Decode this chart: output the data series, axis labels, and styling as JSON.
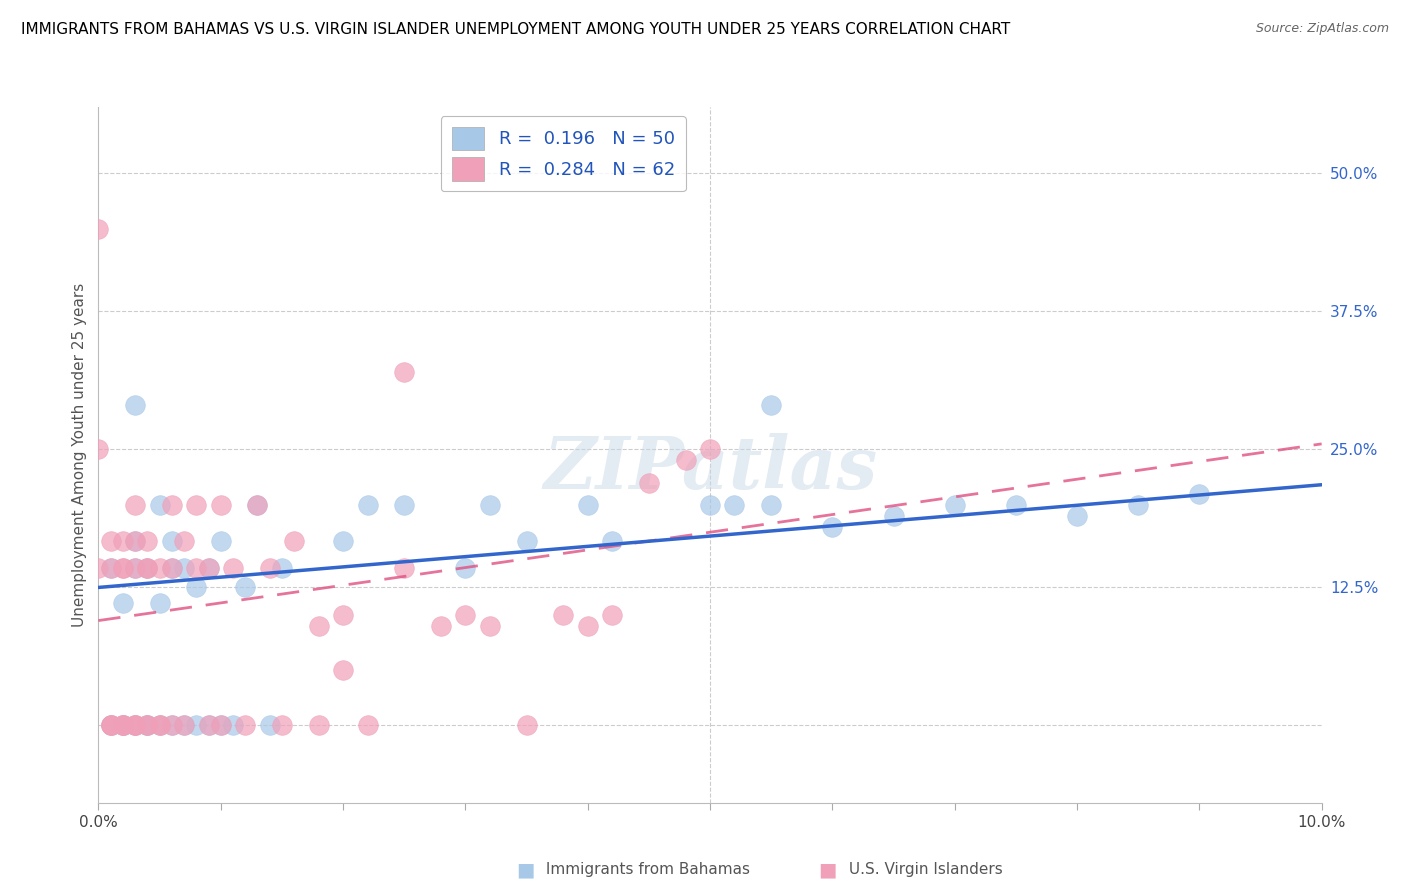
{
  "title": "IMMIGRANTS FROM BAHAMAS VS U.S. VIRGIN ISLANDER UNEMPLOYMENT AMONG YOUTH UNDER 25 YEARS CORRELATION CHART",
  "source": "Source: ZipAtlas.com",
  "ylabel": "Unemployment Among Youth under 25 years",
  "xlim": [
    0.0,
    0.1
  ],
  "ylim": [
    -0.07,
    0.56
  ],
  "ytick_vals_right": [
    0.0,
    0.125,
    0.25,
    0.375,
    0.5
  ],
  "ytick_labels_right": [
    "",
    "12.5%",
    "25.0%",
    "37.5%",
    "50.0%"
  ],
  "color_blue": "#A8C8E8",
  "color_pink": "#F0A0B8",
  "trendline_blue_color": "#3366CC",
  "trendline_pink_color": "#E05080",
  "watermark": "ZIPatlas",
  "blue_trendline": [
    0.125,
    0.218
  ],
  "pink_trendline": [
    0.095,
    0.255
  ],
  "blue_scatter": [
    [
      0.001,
      0.143
    ],
    [
      0.001,
      0.0
    ],
    [
      0.002,
      0.0
    ],
    [
      0.002,
      0.111
    ],
    [
      0.002,
      0.0
    ],
    [
      0.003,
      0.0
    ],
    [
      0.003,
      0.143
    ],
    [
      0.003,
      0.167
    ],
    [
      0.004,
      0.0
    ],
    [
      0.004,
      0.0
    ],
    [
      0.004,
      0.143
    ],
    [
      0.005,
      0.0
    ],
    [
      0.005,
      0.111
    ],
    [
      0.005,
      0.2
    ],
    [
      0.006,
      0.0
    ],
    [
      0.006,
      0.143
    ],
    [
      0.006,
      0.167
    ],
    [
      0.007,
      0.0
    ],
    [
      0.007,
      0.143
    ],
    [
      0.008,
      0.0
    ],
    [
      0.008,
      0.125
    ],
    [
      0.009,
      0.0
    ],
    [
      0.009,
      0.143
    ],
    [
      0.01,
      0.0
    ],
    [
      0.01,
      0.167
    ],
    [
      0.011,
      0.0
    ],
    [
      0.012,
      0.125
    ],
    [
      0.013,
      0.2
    ],
    [
      0.014,
      0.0
    ],
    [
      0.015,
      0.143
    ],
    [
      0.02,
      0.167
    ],
    [
      0.022,
      0.2
    ],
    [
      0.025,
      0.2
    ],
    [
      0.03,
      0.143
    ],
    [
      0.032,
      0.2
    ],
    [
      0.035,
      0.167
    ],
    [
      0.04,
      0.2
    ],
    [
      0.042,
      0.167
    ],
    [
      0.05,
      0.2
    ],
    [
      0.052,
      0.2
    ],
    [
      0.055,
      0.2
    ],
    [
      0.06,
      0.18
    ],
    [
      0.065,
      0.19
    ],
    [
      0.07,
      0.2
    ],
    [
      0.075,
      0.2
    ],
    [
      0.08,
      0.19
    ],
    [
      0.085,
      0.2
    ],
    [
      0.09,
      0.21
    ],
    [
      0.055,
      0.29
    ],
    [
      0.003,
      0.29
    ]
  ],
  "pink_scatter": [
    [
      0.0,
      0.25
    ],
    [
      0.0,
      0.143
    ],
    [
      0.001,
      0.0
    ],
    [
      0.001,
      0.167
    ],
    [
      0.001,
      0.143
    ],
    [
      0.001,
      0.0
    ],
    [
      0.002,
      0.143
    ],
    [
      0.002,
      0.0
    ],
    [
      0.002,
      0.167
    ],
    [
      0.002,
      0.143
    ],
    [
      0.002,
      0.0
    ],
    [
      0.003,
      0.0
    ],
    [
      0.003,
      0.143
    ],
    [
      0.003,
      0.167
    ],
    [
      0.003,
      0.2
    ],
    [
      0.003,
      0.0
    ],
    [
      0.004,
      0.143
    ],
    [
      0.004,
      0.0
    ],
    [
      0.004,
      0.167
    ],
    [
      0.004,
      0.143
    ],
    [
      0.005,
      0.0
    ],
    [
      0.005,
      0.143
    ],
    [
      0.005,
      0.0
    ],
    [
      0.006,
      0.2
    ],
    [
      0.006,
      0.0
    ],
    [
      0.006,
      0.143
    ],
    [
      0.007,
      0.167
    ],
    [
      0.007,
      0.0
    ],
    [
      0.008,
      0.143
    ],
    [
      0.008,
      0.2
    ],
    [
      0.009,
      0.0
    ],
    [
      0.009,
      0.143
    ],
    [
      0.01,
      0.2
    ],
    [
      0.01,
      0.0
    ],
    [
      0.011,
      0.143
    ],
    [
      0.012,
      0.0
    ],
    [
      0.013,
      0.2
    ],
    [
      0.014,
      0.143
    ],
    [
      0.015,
      0.0
    ],
    [
      0.016,
      0.167
    ],
    [
      0.018,
      0.09
    ],
    [
      0.02,
      0.1
    ],
    [
      0.022,
      0.0
    ],
    [
      0.025,
      0.143
    ],
    [
      0.028,
      0.09
    ],
    [
      0.03,
      0.1
    ],
    [
      0.032,
      0.09
    ],
    [
      0.038,
      0.1
    ],
    [
      0.04,
      0.09
    ],
    [
      0.042,
      0.1
    ],
    [
      0.045,
      0.22
    ],
    [
      0.048,
      0.24
    ],
    [
      0.05,
      0.25
    ],
    [
      0.035,
      0.0
    ],
    [
      0.018,
      0.0
    ],
    [
      0.02,
      0.05
    ],
    [
      0.0,
      0.45
    ],
    [
      0.025,
      0.32
    ],
    [
      0.001,
      0.0
    ],
    [
      0.002,
      0.0
    ],
    [
      0.003,
      0.0
    ],
    [
      0.004,
      0.0
    ]
  ]
}
